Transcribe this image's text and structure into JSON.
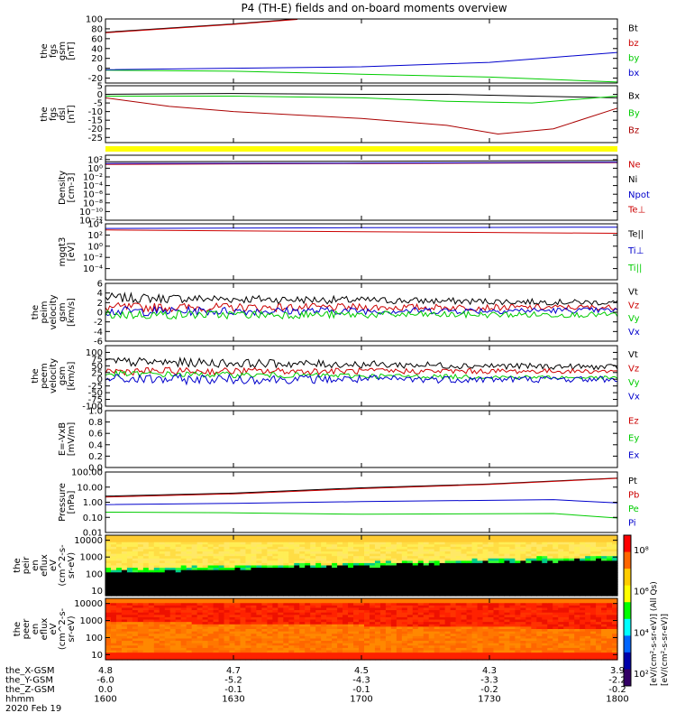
{
  "title": "P4 (TH-E) fields and on-board moments overview",
  "colors": {
    "black": "#000000",
    "red": "#cc0000",
    "darkred": "#aa0000",
    "green": "#00cc00",
    "blue": "#0000cc",
    "yellow": "#ffff00"
  },
  "chart_data": [
    {
      "type": "line",
      "id": "fgs_gsm",
      "ylabel_lines": [
        "the",
        "fgs",
        "gsm",
        "[nT]"
      ],
      "ylim": [
        -30,
        100
      ],
      "yticks": [
        "100",
        "80",
        "60",
        "40",
        "20",
        "0",
        "-20"
      ],
      "yticks_values": [
        100,
        80,
        60,
        40,
        20,
        0,
        -20
      ],
      "legend": [
        {
          "label": "Bt",
          "color": "#000000"
        },
        {
          "label": "bz",
          "color": "#cc0000"
        },
        {
          "label": "by",
          "color": "#00cc00"
        },
        {
          "label": "bx",
          "color": "#0000cc"
        }
      ],
      "series": [
        {
          "name": "Bt",
          "color": "#000000",
          "x": [
            1600,
            1630,
            1645
          ],
          "y": [
            73,
            90,
            100
          ]
        },
        {
          "name": "bz",
          "color": "#cc0000",
          "x": [
            1600,
            1630,
            1645
          ],
          "y": [
            72,
            89,
            99
          ]
        },
        {
          "name": "by",
          "color": "#00cc00",
          "x": [
            1600,
            1630,
            1700,
            1730,
            1800
          ],
          "y": [
            -4,
            -6,
            -12,
            -18,
            -28
          ]
        },
        {
          "name": "bx",
          "color": "#0000cc",
          "x": [
            1600,
            1630,
            1700,
            1730,
            1800
          ],
          "y": [
            -3,
            0,
            3,
            12,
            32
          ]
        }
      ]
    },
    {
      "type": "line",
      "id": "fgs_dsl",
      "ylabel_lines": [
        "the",
        "fgs",
        "dsl",
        "[nT]"
      ],
      "ylim": [
        -28,
        5
      ],
      "yticks": [
        "5",
        "0",
        "-5",
        "-10",
        "-15",
        "-20",
        "-25"
      ],
      "yticks_values": [
        5,
        0,
        -5,
        -10,
        -15,
        -20,
        -25
      ],
      "legend": [
        {
          "label": "Bx",
          "color": "#000000"
        },
        {
          "label": "By",
          "color": "#00cc00"
        },
        {
          "label": "Bz",
          "color": "#aa0000"
        }
      ],
      "series": [
        {
          "name": "Bx",
          "color": "#000000",
          "x": [
            1600,
            1630,
            1700,
            1720,
            1740,
            1800
          ],
          "y": [
            0,
            0.5,
            0,
            0,
            -1,
            -2
          ]
        },
        {
          "name": "By",
          "color": "#00cc00",
          "x": [
            1600,
            1630,
            1700,
            1720,
            1740,
            1800
          ],
          "y": [
            -1,
            -1,
            -2,
            -4,
            -5,
            -1
          ]
        },
        {
          "name": "Bz",
          "color": "#aa0000",
          "x": [
            1600,
            1615,
            1630,
            1700,
            1720,
            1732,
            1745,
            1800
          ],
          "y": [
            -2,
            -7,
            -10,
            -14,
            -18,
            -23,
            -20,
            -8
          ]
        }
      ]
    },
    {
      "type": "line",
      "id": "density",
      "scale": "log",
      "ylabel_lines": [
        "Density",
        "[cm-3]"
      ],
      "ylim": [
        1e-12,
        1000
      ],
      "yticks": [
        "10²",
        "10⁰",
        "10⁻²",
        "10⁻⁴",
        "10⁻⁶",
        "10⁻⁸",
        "10⁻¹⁰",
        "10⁻¹²"
      ],
      "yticks_values": [
        100,
        1,
        0.01,
        0.0001,
        1e-06,
        1e-08,
        1e-10,
        1e-12
      ],
      "legend": [
        {
          "label": "Ne",
          "color": "#cc0000"
        },
        {
          "label": "Ni",
          "color": "#000000"
        },
        {
          "label": "Npot",
          "color": "#0000cc"
        },
        {
          "label": "Te⊥",
          "color": "#cc0000"
        }
      ],
      "series": [
        {
          "name": "Ni",
          "color": "#000000",
          "x": [
            1600,
            1700,
            1800
          ],
          "y": [
            30,
            40,
            60
          ]
        },
        {
          "name": "Ne",
          "color": "#cc0000",
          "x": [
            1600,
            1700,
            1800
          ],
          "y": [
            8,
            12,
            20
          ]
        },
        {
          "name": "Npot",
          "color": "#0000cc",
          "x": [
            1600,
            1700,
            1800
          ],
          "y": [
            12,
            15,
            25
          ]
        }
      ]
    },
    {
      "type": "line",
      "id": "temperature",
      "scale": "log",
      "ylabel_lines": [
        "mgqt3",
        "[eV]"
      ],
      "ylim": [
        1e-06,
        10000
      ],
      "yticks": [
        "10⁴",
        "10²",
        "10⁰",
        "10⁻²",
        "10⁻⁴"
      ],
      "yticks_values": [
        10000,
        100,
        1,
        0.01,
        0.0001
      ],
      "legend": [
        {
          "label": "Te||",
          "color": "#000000"
        },
        {
          "label": "Ti⊥",
          "color": "#0000cc"
        },
        {
          "label": "Ti||",
          "color": "#00cc00"
        }
      ],
      "series": [
        {
          "name": "Ti",
          "color": "#0000cc",
          "x": [
            1600,
            1700,
            1800
          ],
          "y": [
            1500,
            2000,
            2500
          ]
        },
        {
          "name": "Te",
          "color": "#cc0000",
          "x": [
            1600,
            1700,
            1800
          ],
          "y": [
            800,
            400,
            200
          ]
        }
      ]
    },
    {
      "type": "line",
      "id": "peim_velocity",
      "ylabel_lines": [
        "the",
        "peim",
        "velocity",
        "gsm",
        "[km/s]"
      ],
      "ylim": [
        -6,
        6
      ],
      "yticks": [
        "6",
        "4",
        "2",
        "0",
        "-2",
        "-4",
        "-6"
      ],
      "yticks_values": [
        6,
        4,
        2,
        0,
        -2,
        -4,
        -6
      ],
      "legend": [
        {
          "label": "Vt",
          "color": "#000000"
        },
        {
          "label": "Vz",
          "color": "#cc0000"
        },
        {
          "label": "Vy",
          "color": "#00cc00"
        },
        {
          "label": "Vx",
          "color": "#0000cc"
        }
      ],
      "series": [
        {
          "name": "Vt",
          "color": "#000000",
          "x": [
            1600,
            1800
          ],
          "y": [
            3,
            2
          ],
          "noise": 1.0
        },
        {
          "name": "Vz",
          "color": "#cc0000",
          "x": [
            1600,
            1800
          ],
          "y": [
            1,
            1
          ],
          "noise": 1.0
        },
        {
          "name": "Vx",
          "color": "#0000cc",
          "x": [
            1600,
            1800
          ],
          "y": [
            0.2,
            0.4
          ],
          "noise": 1.0
        },
        {
          "name": "Vy",
          "color": "#00cc00",
          "x": [
            1600,
            1800
          ],
          "y": [
            -0.5,
            -0.5
          ],
          "noise": 1.0
        }
      ]
    },
    {
      "type": "line",
      "id": "peem_velocity",
      "ylabel_lines": [
        "the",
        "peem",
        "velocity",
        "gsm",
        "[km/s]"
      ],
      "ylim": [
        -100,
        125
      ],
      "yticks": [
        "100",
        "75",
        "50",
        "25",
        "0",
        "-25",
        "-50",
        "-75",
        "-100"
      ],
      "yticks_values": [
        100,
        75,
        50,
        25,
        0,
        -25,
        -50,
        -75,
        -100
      ],
      "legend": [
        {
          "label": "Vt",
          "color": "#000000"
        },
        {
          "label": "Vz",
          "color": "#cc0000"
        },
        {
          "label": "Vy",
          "color": "#00cc00"
        },
        {
          "label": "Vx",
          "color": "#0000cc"
        }
      ],
      "series": [
        {
          "name": "Vt",
          "color": "#000000",
          "x": [
            1600,
            1800
          ],
          "y": [
            65,
            45
          ],
          "noise": 18
        },
        {
          "name": "Vz",
          "color": "#cc0000",
          "x": [
            1600,
            1800
          ],
          "y": [
            30,
            30
          ],
          "noise": 15
        },
        {
          "name": "Vy",
          "color": "#00cc00",
          "x": [
            1600,
            1800
          ],
          "y": [
            20,
            5
          ],
          "noise": 12
        },
        {
          "name": "Vx",
          "color": "#0000cc",
          "x": [
            1600,
            1800
          ],
          "y": [
            0,
            0
          ],
          "noise": 20
        }
      ]
    },
    {
      "type": "line",
      "id": "efield",
      "ylabel_lines": [
        "E=-VxB",
        "[mV/m]"
      ],
      "ylim": [
        0,
        1
      ],
      "yticks": [
        "1.0",
        "0.8",
        "0.6",
        "0.4",
        "0.2",
        "0.0"
      ],
      "yticks_values": [
        1.0,
        0.8,
        0.6,
        0.4,
        0.2,
        0.0
      ],
      "legend": [
        {
          "label": "Ez",
          "color": "#cc0000"
        },
        {
          "label": "Ey",
          "color": "#00cc00"
        },
        {
          "label": "Ex",
          "color": "#0000cc"
        }
      ],
      "series": []
    },
    {
      "type": "line",
      "id": "pressure",
      "scale": "log",
      "ylabel_lines": [
        "Pressure",
        "[nPa]"
      ],
      "ylim": [
        0.01,
        100
      ],
      "yticks": [
        "100.00",
        "10.00",
        "1.00",
        "0.10",
        "0.01"
      ],
      "yticks_values": [
        100,
        10,
        1,
        0.1,
        0.01
      ],
      "legend": [
        {
          "label": "Pt",
          "color": "#000000"
        },
        {
          "label": "Pb",
          "color": "#cc0000"
        },
        {
          "label": "Pe",
          "color": "#00cc00"
        },
        {
          "label": "Pi",
          "color": "#0000cc"
        }
      ],
      "series": [
        {
          "name": "Pt",
          "color": "#000000",
          "x": [
            1600,
            1630,
            1700,
            1730,
            1800
          ],
          "y": [
            2.5,
            4,
            9,
            16,
            40
          ]
        },
        {
          "name": "Pb",
          "color": "#cc0000",
          "x": [
            1600,
            1630,
            1700,
            1730,
            1800
          ],
          "y": [
            2.2,
            3.6,
            8,
            15,
            38
          ]
        },
        {
          "name": "Pi",
          "color": "#0000cc",
          "x": [
            1600,
            1630,
            1700,
            1745,
            1800
          ],
          "y": [
            0.7,
            0.85,
            1.1,
            1.5,
            0.9
          ]
        },
        {
          "name": "Pe",
          "color": "#00cc00",
          "x": [
            1600,
            1630,
            1700,
            1745,
            1800
          ],
          "y": [
            0.22,
            0.2,
            0.16,
            0.18,
            0.09
          ]
        }
      ]
    },
    {
      "type": "heatmap",
      "id": "peir_spectrogram",
      "scale": "log",
      "ylabel_lines": [
        "the",
        "peir",
        "en",
        "eflux",
        "eV",
        "(cm^2-s-",
        "sr-eV)"
      ],
      "ylim": [
        5,
        20000
      ],
      "yticks": [
        "10000",
        "1000",
        "100",
        "10"
      ],
      "yticks_values": [
        10000,
        1000,
        100,
        10
      ]
    },
    {
      "type": "heatmap",
      "id": "peer_spectrogram",
      "scale": "log",
      "ylabel_lines": [
        "the",
        "peer",
        "en",
        "eflux",
        "eV",
        "(cm^2-s-",
        "sr-eV)"
      ],
      "ylim": [
        5,
        20000
      ],
      "yticks": [
        "10000",
        "1000",
        "100",
        "10"
      ],
      "yticks_values": [
        10000,
        1000,
        100,
        10
      ]
    }
  ],
  "colorbar": {
    "ticks": [
      "10⁸",
      "10⁶",
      "10⁴",
      "10²"
    ],
    "label_top": "[eV/(cm²-s-sr-eV)] (All Qs)",
    "label_bottom": "[eV/(cm²-s-sr-eV)]"
  },
  "x_axis": {
    "rows": [
      {
        "label": "the_X-GSM",
        "values": [
          "4.8",
          "4.7",
          "4.5",
          "4.3",
          "3.9"
        ]
      },
      {
        "label": "the_Y-GSM",
        "values": [
          "-6.0",
          "-5.2",
          "-4.3",
          "-3.3",
          "-2.2"
        ]
      },
      {
        "label": "the_Z-GSM",
        "values": [
          "0.0",
          "-0.1",
          "-0.1",
          "-0.2",
          "-0.2"
        ]
      },
      {
        "label": "hhmm",
        "values": [
          "1600",
          "1630",
          "1700",
          "1730",
          "1800"
        ]
      }
    ],
    "date": "2020 Feb 19",
    "time_range": [
      1600,
      1800
    ]
  }
}
